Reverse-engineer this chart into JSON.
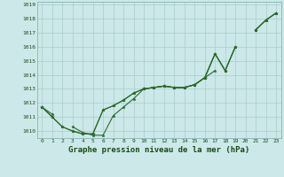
{
  "title": "Graphe pression niveau de la mer (hPa)",
  "hours": [
    0,
    1,
    2,
    3,
    4,
    5,
    6,
    7,
    8,
    9,
    10,
    11,
    12,
    13,
    14,
    15,
    16,
    17,
    18,
    19,
    20,
    21,
    22,
    23
  ],
  "ylim": [
    1009.5,
    1019.2
  ],
  "xlim": [
    -0.5,
    23.5
  ],
  "yticks": [
    1010,
    1011,
    1012,
    1013,
    1014,
    1015,
    1016,
    1017,
    1018,
    1019
  ],
  "bg_color": "#cce8e8",
  "grid_color": "#aacccc",
  "line_color": "#2d6a2d",
  "lines": [
    [
      1011.7,
      1011.0,
      1010.3,
      1010.0,
      1009.8,
      1009.8,
      1011.5,
      1011.8,
      1012.2,
      1012.7,
      1013.0,
      1013.1,
      1013.2,
      1013.1,
      1013.1,
      1013.3,
      1013.8,
      1015.5,
      1014.3,
      1016.0,
      null,
      1017.2,
      1017.9,
      1018.4
    ],
    [
      1011.7,
      1011.0,
      1010.3,
      1010.0,
      1009.8,
      1009.8,
      1011.5,
      1011.8,
      1012.2,
      1012.7,
      1013.0,
      1013.1,
      1013.2,
      1013.1,
      1013.1,
      1013.3,
      1013.8,
      1014.3,
      null,
      null,
      null,
      null,
      null,
      null
    ],
    [
      1011.7,
      null,
      null,
      1010.3,
      1009.9,
      1009.7,
      1009.7,
      1011.1,
      1011.7,
      1012.3,
      1013.0,
      1013.1,
      1013.2,
      1013.1,
      1013.1,
      1013.3,
      1013.8,
      1015.5,
      1014.3,
      1016.0,
      null,
      1017.2,
      1017.9,
      1018.4
    ],
    [
      1011.7,
      1011.2,
      null,
      null,
      null,
      null,
      null,
      null,
      null,
      null,
      1013.0,
      1013.1,
      1013.2,
      1013.1,
      1013.1,
      1013.3,
      1013.8,
      1015.5,
      1014.3,
      1016.0,
      null,
      1017.2,
      1017.9,
      1018.4
    ]
  ],
  "title_fontsize": 6.5,
  "tick_fontsize": 4.5
}
